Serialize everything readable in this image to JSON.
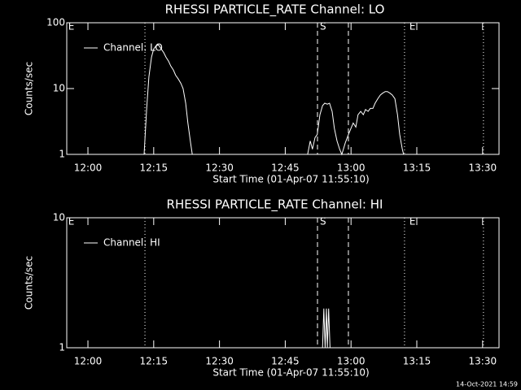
{
  "footer": "14-Oct-2021 14:59",
  "chart_data": [
    {
      "type": "line",
      "title": "RHESSI PARTICLE_RATE Channel: LO",
      "xlabel": "Start Time (01-Apr-07 11:55:10)",
      "ylabel": "Counts/sec",
      "log_scale": true,
      "legend": "upper left",
      "xlim": [
        -4.83,
        93.75
      ],
      "xticks": [
        {
          "value": 0,
          "label": "12:00"
        },
        {
          "value": 15,
          "label": "12:15"
        },
        {
          "value": 30,
          "label": "12:30"
        },
        {
          "value": 45,
          "label": "12:45"
        },
        {
          "value": 60,
          "label": "13:00"
        },
        {
          "value": 75,
          "label": "13:15"
        },
        {
          "value": 90,
          "label": "13:30"
        }
      ],
      "ylim": [
        1,
        100
      ],
      "yticks": [
        1,
        10,
        100
      ],
      "vlines": [
        {
          "x": 13.0,
          "style": "dotted"
        },
        {
          "x": 52.35,
          "style": "dashed"
        },
        {
          "x": 59.4,
          "style": "dashed"
        },
        {
          "x": 72.2,
          "style": "dotted"
        },
        {
          "x": 90.2,
          "style": "dotted"
        }
      ],
      "annotations": [
        {
          "text": "E",
          "x": -4.5
        },
        {
          "text": "S",
          "x": 52.9
        },
        {
          "text": "E",
          "x": 73.3
        }
      ],
      "x": [
        12.8,
        13.4,
        13.9,
        14.5,
        15.0,
        15.6,
        16.1,
        16.7,
        17.3,
        17.8,
        18.4,
        18.9,
        19.5,
        20.0,
        20.6,
        21.2,
        21.7,
        22.3,
        22.8,
        23.4,
        23.8,
        null,
        50.1,
        50.7,
        51.2,
        51.8,
        52.3,
        52.9,
        53.5,
        54.0,
        54.6,
        55.1,
        55.7,
        56.2,
        56.8,
        57.4,
        57.9,
        58.7,
        59.4,
        60.0,
        60.5,
        61.1,
        61.6,
        62.2,
        62.8,
        63.3,
        63.9,
        64.4,
        65.0,
        65.5,
        66.1,
        66.7,
        67.2,
        67.8,
        68.3,
        68.9,
        69.4,
        70.0,
        70.6,
        71.1,
        71.7,
        72.0
      ],
      "series": [
        {
          "name": "Channel: LO",
          "color": "#ffffff",
          "values": [
            1,
            5,
            15,
            30,
            40,
            45,
            46,
            40,
            35,
            30,
            26,
            22,
            19,
            16,
            14,
            12,
            10,
            6,
            3,
            1.5,
            1,
            null,
            1,
            1.6,
            1.2,
            1.8,
            2,
            4,
            5.5,
            6,
            5.8,
            6,
            4.5,
            2.5,
            1.6,
            1.2,
            1,
            1.5,
            2,
            2.5,
            3,
            2.6,
            4,
            4.5,
            4,
            4.8,
            4.5,
            5,
            5,
            6,
            7,
            8,
            8.5,
            9,
            9,
            8.5,
            8,
            7,
            4,
            2,
            1.2,
            1
          ]
        }
      ]
    },
    {
      "type": "line",
      "title": "RHESSI PARTICLE_RATE Channel: HI",
      "xlabel": "Start Time (01-Apr-07 11:55:10)",
      "ylabel": "Counts/sec",
      "log_scale": true,
      "legend": "upper left",
      "xlim": [
        -4.83,
        93.75
      ],
      "xticks": [
        {
          "value": 0,
          "label": "12:00"
        },
        {
          "value": 15,
          "label": "12:15"
        },
        {
          "value": 30,
          "label": "12:30"
        },
        {
          "value": 45,
          "label": "12:45"
        },
        {
          "value": 60,
          "label": "13:00"
        },
        {
          "value": 75,
          "label": "13:15"
        },
        {
          "value": 90,
          "label": "13:30"
        }
      ],
      "ylim": [
        1,
        10
      ],
      "yticks": [
        1,
        10
      ],
      "vlines": [
        {
          "x": 13.0,
          "style": "dotted"
        },
        {
          "x": 52.35,
          "style": "dashed"
        },
        {
          "x": 59.4,
          "style": "dashed"
        },
        {
          "x": 72.2,
          "style": "dotted"
        },
        {
          "x": 90.2,
          "style": "dotted"
        }
      ],
      "annotations": [
        {
          "text": "E",
          "x": -4.5
        },
        {
          "text": "S",
          "x": 52.9
        },
        {
          "text": "E",
          "x": 73.3
        }
      ],
      "x": [
        53.5,
        53.8,
        54.1,
        54.4,
        54.6,
        54.9,
        55.2
      ],
      "series": [
        {
          "name": "Channel: HI",
          "color": "#ffffff",
          "values": [
            1,
            2,
            1,
            2,
            1,
            2,
            1
          ]
        }
      ]
    }
  ]
}
